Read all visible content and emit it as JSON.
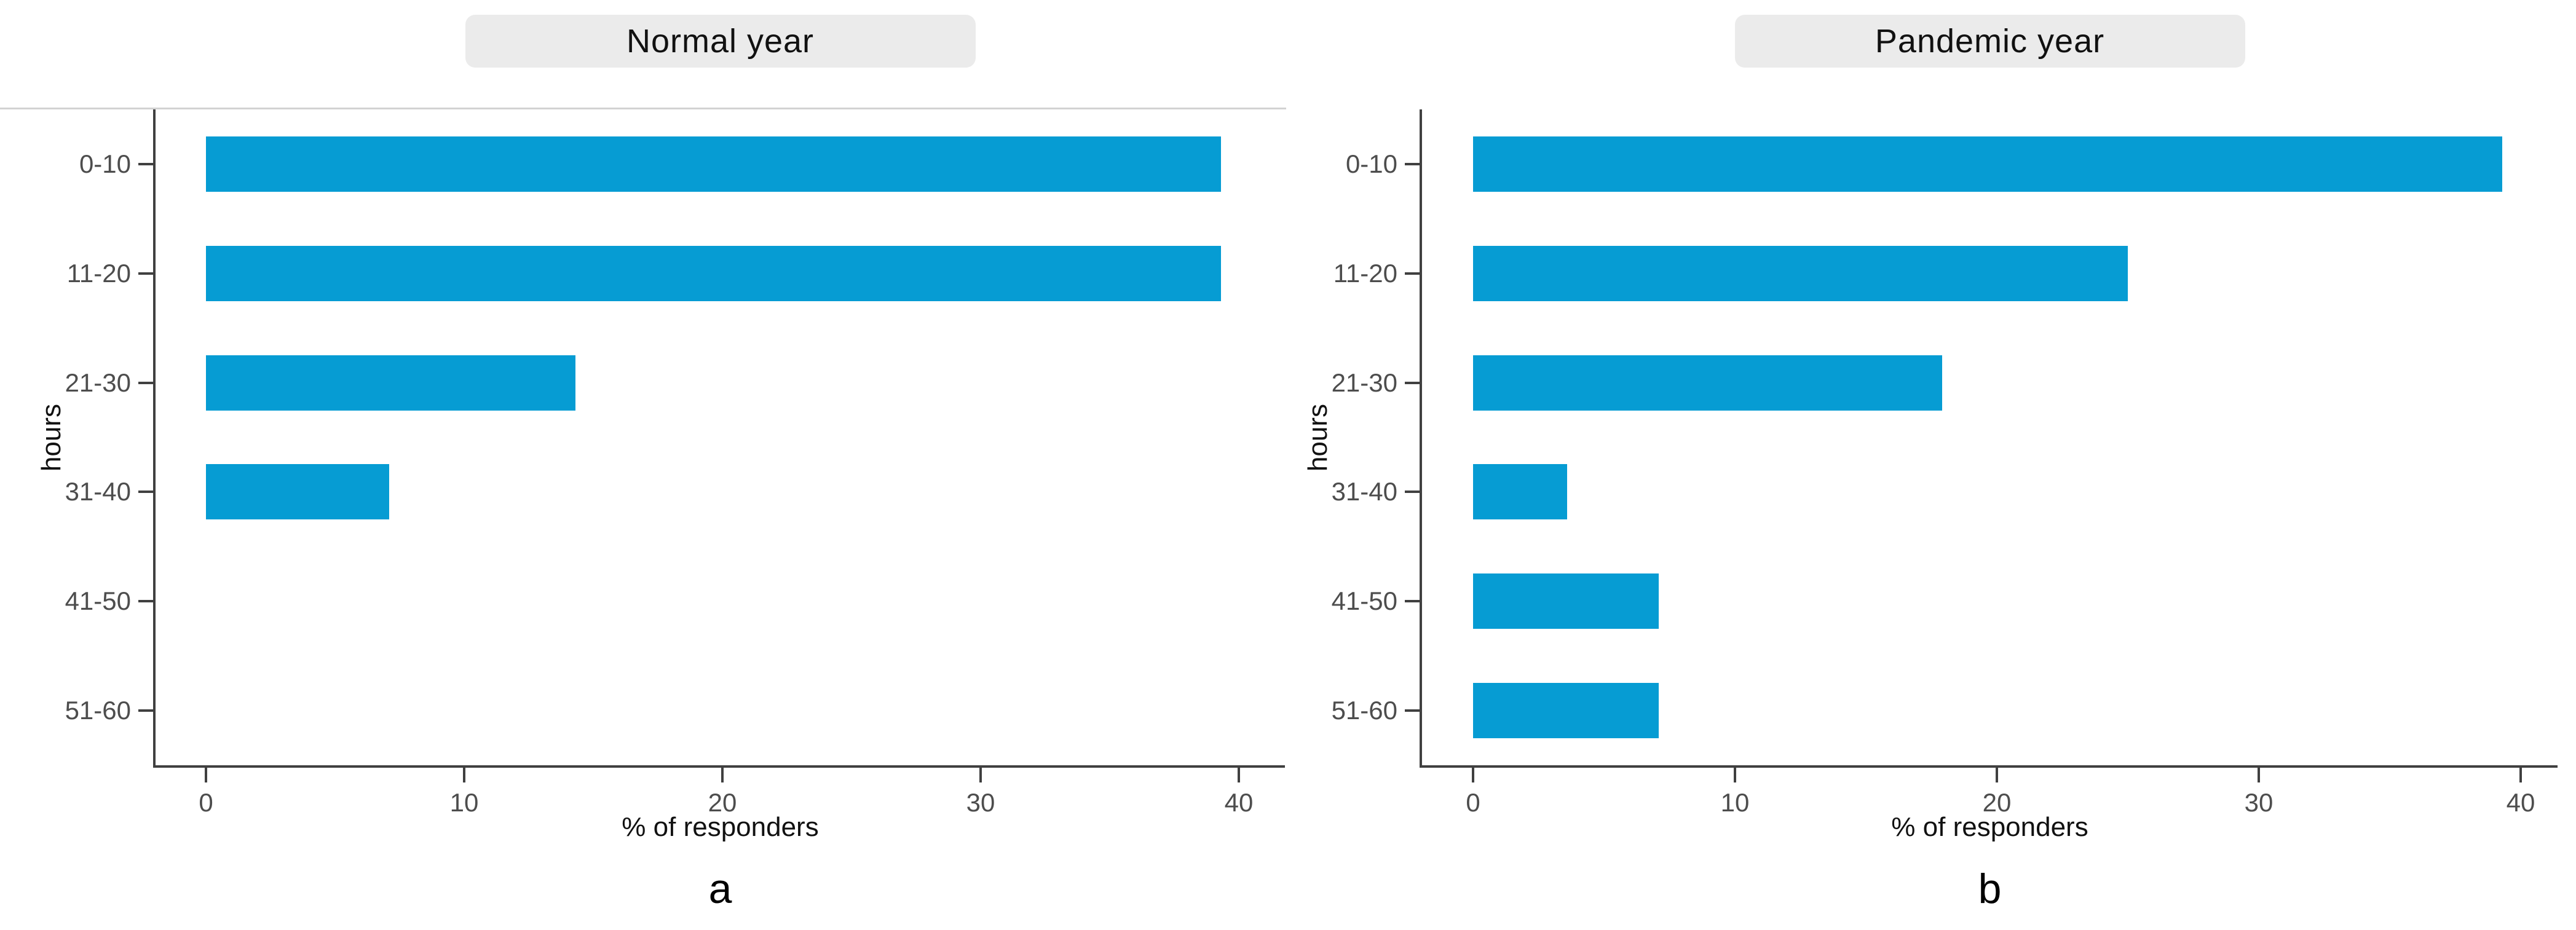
{
  "figure": {
    "background": "#ffffff"
  },
  "colors": {
    "bar": "#069CD3",
    "strip_background": "#ebebeb",
    "strip_text": "#111111",
    "axis_line": "#404040",
    "tick_label": "#4d4d4d",
    "axis_title": "#111111",
    "panel_letter": "#000000",
    "top_rule": "#d2d2d2"
  },
  "chart_data": [
    {
      "type": "bar",
      "orientation": "horizontal",
      "title": "Normal year",
      "panel_label": "a",
      "categories": [
        "0-10",
        "11-20",
        "21-30",
        "31-40",
        "41-50",
        "51-60"
      ],
      "values": [
        39.3,
        39.3,
        14.3,
        7.1,
        0,
        0
      ],
      "xlabel": "% of responders",
      "ylabel": "hours",
      "x_ticks": [
        0,
        10,
        20,
        30,
        40
      ],
      "xlim": [
        0,
        41.5
      ],
      "grid": false,
      "legend": "none"
    },
    {
      "type": "bar",
      "orientation": "horizontal",
      "title": "Pandemic year",
      "panel_label": "b",
      "categories": [
        "0-10",
        "11-20",
        "21-30",
        "31-40",
        "41-50",
        "51-60"
      ],
      "values": [
        39.3,
        25.0,
        17.9,
        3.6,
        7.1,
        7.1
      ],
      "xlabel": "% of responders",
      "ylabel": "hours",
      "x_ticks": [
        0,
        10,
        20,
        30,
        40
      ],
      "xlim": [
        0,
        41.5
      ],
      "grid": false,
      "legend": "none"
    }
  ]
}
